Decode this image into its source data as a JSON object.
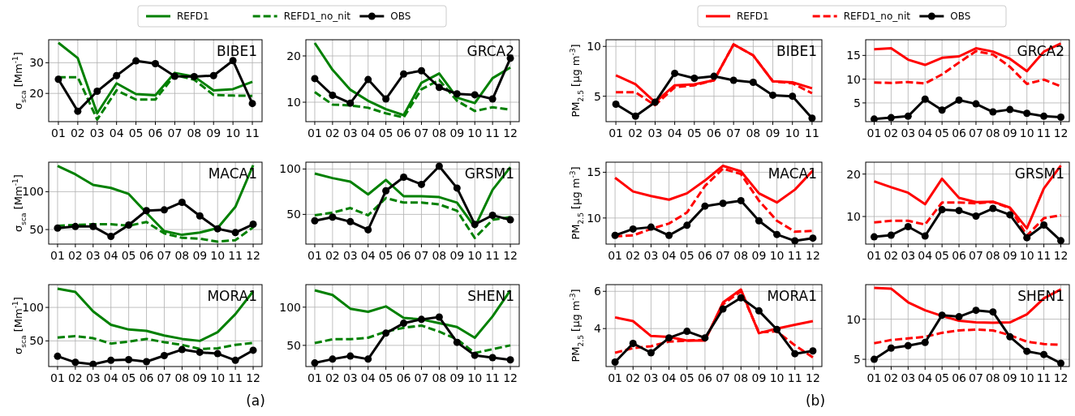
{
  "chart_data": [
    {
      "type": "line",
      "title": "BIBE1",
      "ylabel": "σ$_{sca}$ [Mm$^{-1}$]",
      "categories": [
        "01",
        "02",
        "03",
        "04",
        "05",
        "06",
        "07",
        "08",
        "09",
        "10",
        "11"
      ],
      "ylim": [
        10.8,
        37.5
      ],
      "yticks": [
        20,
        30
      ],
      "grid": true,
      "legend": "top",
      "series": [
        {
          "name": "REFD1",
          "color": "#008000",
          "line_style": "solid",
          "marker": "none",
          "values": [
            36.5,
            31.5,
            13.5,
            23.3,
            19.8,
            19.4,
            26.7,
            25.5,
            21,
            21.4,
            23.8
          ]
        },
        {
          "name": "REFD1_no_nit",
          "color": "#008000",
          "line_style": "dashed",
          "marker": "none",
          "values": [
            25.3,
            25.3,
            11.5,
            21,
            18,
            18,
            26,
            24.5,
            19.5,
            19.3,
            19.2
          ]
        },
        {
          "name": "OBS",
          "color": "#000000",
          "line_style": "solid",
          "marker": "circle",
          "values": [
            24.6,
            14.2,
            20.7,
            25.8,
            30.6,
            29.7,
            25.6,
            25.5,
            25.8,
            30.7,
            16.7
          ]
        }
      ]
    },
    {
      "type": "line",
      "title": "GRCA2",
      "categories": [
        "01",
        "02",
        "03",
        "04",
        "05",
        "06",
        "07",
        "08",
        "09",
        "10",
        "11",
        "12"
      ],
      "ylim": [
        5.8,
        23.5
      ],
      "yticks": [
        10,
        20
      ],
      "grid": true,
      "series": [
        {
          "color": "#008000",
          "line_style": "solid",
          "marker": "none",
          "values": [
            22.8,
            17,
            12.7,
            10.3,
            8.5,
            7.2,
            14.2,
            16.2,
            11,
            9.8,
            15.2,
            17.5
          ]
        },
        {
          "color": "#008000",
          "line_style": "dashed",
          "marker": "none",
          "values": [
            12.2,
            9.5,
            9.3,
            8.8,
            7.6,
            6.7,
            12.8,
            14.8,
            10.3,
            8.1,
            8.9,
            8.4
          ]
        },
        {
          "color": "#000000",
          "line_style": "solid",
          "marker": "circle",
          "values": [
            15.1,
            11.5,
            9.8,
            14.9,
            10.7,
            16.1,
            16.8,
            13.2,
            11.8,
            11.6,
            10.7,
            19.5
          ]
        }
      ]
    },
    {
      "type": "line",
      "title": "MACA1",
      "ylabel": "σ$_{sca}$ [Mm$^{-1}$]",
      "categories": [
        "01",
        "02",
        "03",
        "04",
        "05",
        "06",
        "07",
        "08",
        "09",
        "10",
        "11",
        "12"
      ],
      "ylim": [
        30.8,
        139
      ],
      "yticks": [
        50,
        100
      ],
      "grid": true,
      "series": [
        {
          "color": "#008000",
          "line_style": "solid",
          "marker": "none",
          "values": [
            134,
            123,
            109,
            105,
            97,
            72,
            48,
            43,
            46,
            52,
            80,
            135
          ]
        },
        {
          "color": "#008000",
          "line_style": "dashed",
          "marker": "none",
          "values": [
            55,
            56,
            57,
            57,
            55,
            60,
            45,
            39,
            38,
            34,
            36,
            53
          ]
        },
        {
          "color": "#000000",
          "line_style": "solid",
          "marker": "circle",
          "values": [
            52,
            54,
            54,
            41,
            56,
            75,
            76,
            86,
            68,
            51,
            46,
            57
          ]
        }
      ]
    },
    {
      "type": "line",
      "title": "GRSM1",
      "categories": [
        "01",
        "02",
        "03",
        "04",
        "05",
        "06",
        "07",
        "08",
        "09",
        "10",
        "11",
        "12"
      ],
      "ylim": [
        17.3,
        107.5
      ],
      "yticks": [
        50,
        100
      ],
      "grid": true,
      "series": [
        {
          "color": "#008000",
          "line_style": "solid",
          "marker": "none",
          "values": [
            95,
            90,
            86,
            72,
            88,
            70,
            70,
            69,
            63,
            36,
            77,
            102
          ]
        },
        {
          "color": "#008000",
          "line_style": "dashed",
          "marker": "none",
          "values": [
            49,
            52,
            57,
            49,
            68,
            63,
            63,
            61,
            54,
            24,
            44,
            47
          ]
        },
        {
          "color": "#000000",
          "line_style": "solid",
          "marker": "circle",
          "values": [
            43,
            47,
            42,
            33,
            76,
            91,
            83,
            103,
            79,
            39,
            49,
            44
          ]
        }
      ]
    },
    {
      "type": "line",
      "title": "MORA1",
      "ylabel": "σ$_{sca}$ [Mm$^{-1}$]",
      "categories": [
        "01",
        "02",
        "03",
        "04",
        "05",
        "06",
        "07",
        "08",
        "09",
        "10",
        "11",
        "12"
      ],
      "ylim": [
        11.7,
        134
      ],
      "yticks": [
        50,
        100
      ],
      "grid": true,
      "series": [
        {
          "color": "#008000",
          "line_style": "solid",
          "marker": "none",
          "values": [
            128,
            123,
            94,
            74,
            67,
            65,
            58,
            53,
            50,
            63,
            90,
            124
          ]
        },
        {
          "color": "#008000",
          "line_style": "dashed",
          "marker": "none",
          "values": [
            55,
            57,
            54,
            46,
            49,
            53,
            48,
            44,
            38,
            39,
            44,
            47
          ]
        },
        {
          "color": "#000000",
          "line_style": "solid",
          "marker": "circle",
          "values": [
            27,
            18,
            15,
            21,
            22,
            19,
            28,
            37,
            33,
            31,
            21,
            36
          ]
        }
      ]
    },
    {
      "type": "line",
      "title": "SHEN1",
      "categories": [
        "01",
        "02",
        "03",
        "04",
        "05",
        "06",
        "07",
        "08",
        "09",
        "10",
        "11",
        "12"
      ],
      "ylim": [
        22.3,
        129.5
      ],
      "yticks": [
        50,
        100
      ],
      "grid": true,
      "annotations": [
        "(a)"
      ],
      "series": [
        {
          "color": "#008000",
          "line_style": "solid",
          "marker": "none",
          "values": [
            122,
            116,
            98,
            94,
            101,
            86,
            84,
            79,
            74,
            60,
            88,
            122
          ]
        },
        {
          "color": "#008000",
          "line_style": "dashed",
          "marker": "none",
          "values": [
            53,
            58,
            58,
            60,
            68,
            73,
            76,
            68,
            58,
            40,
            45,
            50
          ]
        },
        {
          "color": "#000000",
          "line_style": "solid",
          "marker": "circle",
          "values": [
            27,
            32,
            36,
            32,
            66,
            79,
            84,
            87,
            54,
            37,
            34,
            31
          ]
        }
      ]
    },
    {
      "type": "line",
      "title": "BIBE1",
      "ylabel": "PM$_{2.5}$ [μg m$^{-3}$]",
      "categories": [
        "01",
        "02",
        "03",
        "04",
        "05",
        "06",
        "07",
        "08",
        "09",
        "10",
        "11"
      ],
      "ylim": [
        2.45,
        10.67
      ],
      "yticks": [
        5,
        10
      ],
      "grid": true,
      "legend": "top",
      "series": [
        {
          "name": "REFD1",
          "color": "#ff0000",
          "line_style": "solid",
          "marker": "none",
          "values": [
            7.1,
            6.2,
            4.4,
            6.1,
            6.2,
            6.6,
            10.2,
            9.1,
            6.5,
            6.4,
            5.8
          ]
        },
        {
          "name": "REFD1_no_nit",
          "color": "#ff0000",
          "line_style": "dashed",
          "marker": "none",
          "values": [
            5.4,
            5.4,
            4.1,
            5.9,
            6.1,
            6.6,
            10.2,
            9.1,
            6.5,
            6.3,
            5.3
          ]
        },
        {
          "name": "OBS",
          "color": "#000000",
          "line_style": "solid",
          "marker": "circle",
          "values": [
            4.2,
            3.0,
            4.4,
            7.3,
            6.8,
            7.0,
            6.6,
            6.4,
            5.1,
            5.0,
            2.8
          ]
        }
      ]
    },
    {
      "type": "line",
      "title": "GRCA2",
      "categories": [
        "01",
        "02",
        "03",
        "04",
        "05",
        "06",
        "07",
        "08",
        "09",
        "10",
        "11",
        "12"
      ],
      "ylim": [
        1.06,
        18.3
      ],
      "yticks": [
        5,
        10,
        15
      ],
      "grid": true,
      "series": [
        {
          "color": "#ff0000",
          "line_style": "solid",
          "marker": "none",
          "values": [
            16.3,
            16.5,
            14.1,
            13.0,
            14.5,
            14.8,
            16.5,
            15.8,
            14.3,
            11.7,
            15.8,
            17.5
          ]
        },
        {
          "color": "#ff0000",
          "line_style": "dashed",
          "marker": "none",
          "values": [
            9.3,
            9.2,
            9.4,
            9.1,
            11.0,
            13.5,
            15.9,
            15.2,
            12.6,
            9.0,
            9.9,
            8.5
          ]
        },
        {
          "color": "#000000",
          "line_style": "solid",
          "marker": "circle",
          "values": [
            1.6,
            1.9,
            2.2,
            5.8,
            3.5,
            5.6,
            4.8,
            3.1,
            3.6,
            2.8,
            2.2,
            2.0
          ]
        }
      ]
    },
    {
      "type": "line",
      "title": "MACA1",
      "ylabel": "PM$_{2.5}$ [μg m$^{-3}$]",
      "categories": [
        "01",
        "02",
        "03",
        "04",
        "05",
        "06",
        "07",
        "08",
        "09",
        "10",
        "11",
        "12"
      ],
      "ylim": [
        7.15,
        16.1
      ],
      "yticks": [
        10,
        15
      ],
      "grid": true,
      "series": [
        {
          "color": "#ff0000",
          "line_style": "solid",
          "marker": "none",
          "values": [
            14.4,
            12.9,
            12.4,
            12.0,
            12.7,
            14.1,
            15.7,
            15.1,
            12.7,
            11.7,
            13.1,
            15.2
          ]
        },
        {
          "color": "#ff0000",
          "line_style": "dashed",
          "marker": "none",
          "values": [
            8.0,
            8.1,
            8.8,
            9.4,
            10.6,
            13.5,
            15.4,
            14.8,
            11.9,
            9.7,
            8.5,
            8.6
          ]
        },
        {
          "color": "#000000",
          "line_style": "solid",
          "marker": "circle",
          "values": [
            8.1,
            8.8,
            9.0,
            8.1,
            9.2,
            11.3,
            11.6,
            11.9,
            9.7,
            8.2,
            7.5,
            7.8
          ]
        }
      ]
    },
    {
      "type": "line",
      "title": "GRSM1",
      "categories": [
        "01",
        "02",
        "03",
        "04",
        "05",
        "06",
        "07",
        "08",
        "09",
        "10",
        "11",
        "12"
      ],
      "ylim": [
        3.5,
        22.8
      ],
      "yticks": [
        10,
        20
      ],
      "grid": true,
      "series": [
        {
          "color": "#ff0000",
          "line_style": "solid",
          "marker": "none",
          "values": [
            18.3,
            16.9,
            15.6,
            12.9,
            18.9,
            14.4,
            13.4,
            13.5,
            12.1,
            7.2,
            16.6,
            22
          ]
        },
        {
          "color": "#ff0000",
          "line_style": "dashed",
          "marker": "none",
          "values": [
            8.6,
            9.0,
            9.0,
            8.1,
            13.3,
            13.3,
            13.1,
            13.4,
            12.0,
            5.5,
            9.6,
            10.3
          ]
        },
        {
          "color": "#000000",
          "line_style": "solid",
          "marker": "circle",
          "values": [
            5.2,
            5.6,
            7.6,
            5.4,
            11.6,
            11.4,
            10.1,
            11.9,
            10.4,
            5.0,
            8.0,
            4.3
          ]
        }
      ]
    },
    {
      "type": "line",
      "title": "MORA1",
      "ylabel": "PM$_{2.5}$ [μg m$^{-3}$]",
      "categories": [
        "01",
        "02",
        "03",
        "04",
        "05",
        "06",
        "07",
        "08",
        "09",
        "10",
        "11",
        "12"
      ],
      "ylim": [
        1.96,
        6.36
      ],
      "yticks": [
        4,
        6
      ],
      "grid": true,
      "series": [
        {
          "color": "#ff0000",
          "line_style": "solid",
          "marker": "none",
          "values": [
            4.6,
            4.4,
            3.6,
            3.55,
            3.35,
            3.35,
            5.4,
            6.1,
            3.75,
            4.0,
            4.2,
            4.4
          ]
        },
        {
          "color": "#ff0000",
          "line_style": "dashed",
          "marker": "none",
          "values": [
            2.7,
            2.95,
            3.05,
            3.3,
            3.35,
            3.4,
            5.3,
            6.0,
            3.8,
            3.85,
            3.1,
            2.45
          ]
        },
        {
          "color": "#000000",
          "line_style": "solid",
          "marker": "circle",
          "values": [
            2.2,
            3.2,
            2.7,
            3.5,
            3.85,
            3.5,
            5.05,
            5.65,
            4.95,
            3.95,
            2.65,
            2.8
          ]
        }
      ]
    },
    {
      "type": "line",
      "title": "SHEN1",
      "categories": [
        "01",
        "02",
        "03",
        "04",
        "05",
        "06",
        "07",
        "08",
        "09",
        "10",
        "11",
        "12"
      ],
      "ylim": [
        4.1,
        14.3
      ],
      "yticks": [
        5,
        10
      ],
      "grid": true,
      "annotations": [
        "(b)"
      ],
      "series": [
        {
          "color": "#ff0000",
          "line_style": "solid",
          "marker": "none",
          "values": [
            13.9,
            13.8,
            12.1,
            11.1,
            10.4,
            9.8,
            9.6,
            9.55,
            9.6,
            10.6,
            12.6,
            13.7
          ]
        },
        {
          "color": "#ff0000",
          "line_style": "dashed",
          "marker": "none",
          "values": [
            7.0,
            7.4,
            7.6,
            7.8,
            8.3,
            8.6,
            8.7,
            8.6,
            8.0,
            7.2,
            6.9,
            6.8
          ]
        },
        {
          "color": "#000000",
          "line_style": "solid",
          "marker": "circle",
          "values": [
            5.0,
            6.4,
            6.7,
            7.1,
            10.5,
            10.3,
            11.1,
            10.9,
            7.8,
            6.0,
            5.6,
            4.5
          ]
        }
      ]
    }
  ]
}
